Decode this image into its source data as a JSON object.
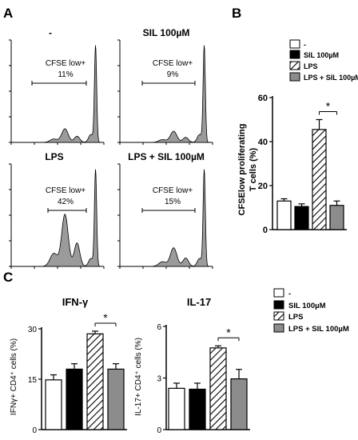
{
  "panel_letters": [
    "A",
    "B",
    "C"
  ],
  "legend_items": [
    {
      "label": "-",
      "pattern": "white"
    },
    {
      "label": "SIL 100µM",
      "pattern": "black"
    },
    {
      "label": "LPS",
      "pattern": "hatch"
    },
    {
      "label": "LPS + SIL 100µM",
      "pattern": "grey"
    }
  ],
  "significance_mark": "*",
  "chart_data": [
    {
      "type": "histogram",
      "panel": "A",
      "title": "-",
      "gate_label_line1": "CFSE low+",
      "gate_label_line2": "11%",
      "cfse_low_percent": 11
    },
    {
      "type": "histogram",
      "panel": "A",
      "title": "SIL 100µM",
      "gate_label_line1": "CFSE low+",
      "gate_label_line2": "9%",
      "cfse_low_percent": 9
    },
    {
      "type": "histogram",
      "panel": "A",
      "title": "LPS",
      "gate_label_line1": "CFSE low+",
      "gate_label_line2": "42%",
      "cfse_low_percent": 42
    },
    {
      "type": "histogram",
      "panel": "A",
      "title": "LPS + SIL 100µM",
      "gate_label_line1": "CFSE low+",
      "gate_label_line2": "15%",
      "cfse_low_percent": 15
    },
    {
      "type": "bar",
      "panel": "B",
      "title": "",
      "ylabel_line1": "CFSElow proliferating",
      "ylabel_line2": "T cells (%)",
      "categories": [
        "-",
        "SIL 100µM",
        "LPS",
        "LPS + SIL 100µM"
      ],
      "values": [
        13,
        10.5,
        45.5,
        11
      ],
      "errors": [
        1,
        1.2,
        4.5,
        2
      ],
      "ylim": [
        0,
        60
      ],
      "yticks": [
        "0",
        "20",
        "40",
        "60"
      ],
      "significance": {
        "between": [
          2,
          3
        ],
        "label": "*"
      }
    },
    {
      "type": "bar",
      "panel": "C",
      "title": "IFN-γ",
      "ylabel": "IFNγ+ CD4⁺ cells (%)",
      "categories": [
        "-",
        "SIL 100µM",
        "LPS",
        "LPS + SIL 100µM"
      ],
      "values": [
        14.8,
        18,
        28.5,
        18
      ],
      "errors": [
        1.5,
        1.6,
        0.8,
        1.6
      ],
      "ylim": [
        0,
        30
      ],
      "yticks": [
        "0",
        "15",
        "30"
      ],
      "significance": {
        "between": [
          2,
          3
        ],
        "label": "*"
      }
    },
    {
      "type": "bar",
      "panel": "C",
      "title": "IL-17",
      "ylabel": "IL-17+ CD4⁺ cells (%)",
      "categories": [
        "-",
        "SIL 100µM",
        "LPS",
        "LPS + SIL 100µM"
      ],
      "values": [
        2.4,
        2.35,
        4.75,
        2.95
      ],
      "errors": [
        0.3,
        0.35,
        0.12,
        0.55
      ],
      "ylim": [
        0,
        6
      ],
      "yticks": [
        "0",
        "3",
        "6"
      ],
      "significance": {
        "between": [
          2,
          3
        ],
        "label": "*"
      }
    }
  ]
}
